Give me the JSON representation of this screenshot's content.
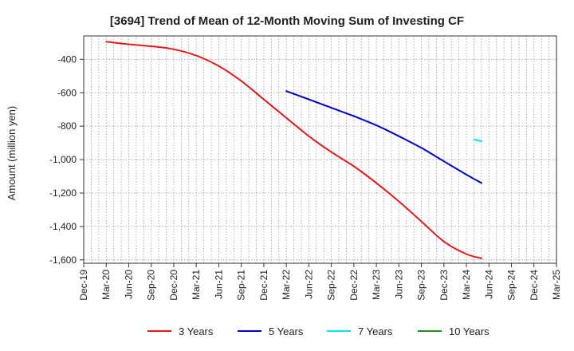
{
  "chart_data": {
    "type": "line",
    "title": "[3694]  Trend of Mean of 12-Month Moving Sum of Investing CF",
    "xlabel": "",
    "ylabel": "Amount (million yen)",
    "ylim": [
      -1620,
      -260
    ],
    "yticks": [
      -400,
      -600,
      -800,
      -1000,
      -1200,
      -1400,
      -1600
    ],
    "ytick_labels": [
      "-400",
      "-600",
      "-800",
      "-1,000",
      "-1,200",
      "-1,400",
      "-1,600"
    ],
    "x_categories": [
      "Dec-19",
      "Mar-20",
      "Jun-20",
      "Sep-20",
      "Dec-20",
      "Mar-21",
      "Jun-21",
      "Sep-21",
      "Dec-21",
      "Mar-22",
      "Jun-22",
      "Sep-22",
      "Dec-22",
      "Mar-23",
      "Jun-23",
      "Sep-23",
      "Dec-23",
      "Mar-24",
      "Jun-24",
      "Sep-24",
      "Dec-24",
      "Mar-25"
    ],
    "grid": true,
    "series": [
      {
        "name": "3 Years",
        "color": "#e31a1c",
        "points": [
          [
            3,
            -295
          ],
          [
            6,
            -310
          ],
          [
            9,
            -322
          ],
          [
            12,
            -340
          ],
          [
            15,
            -378
          ],
          [
            18,
            -440
          ],
          [
            21,
            -530
          ],
          [
            24,
            -640
          ],
          [
            27,
            -750
          ],
          [
            30,
            -860
          ],
          [
            33,
            -955
          ],
          [
            36,
            -1040
          ],
          [
            39,
            -1140
          ],
          [
            42,
            -1250
          ],
          [
            45,
            -1370
          ],
          [
            48,
            -1490
          ],
          [
            51,
            -1565
          ],
          [
            53,
            -1590
          ]
        ]
      },
      {
        "name": "5 Years",
        "color": "#0000cc",
        "points": [
          [
            27,
            -590
          ],
          [
            30,
            -640
          ],
          [
            33,
            -690
          ],
          [
            36,
            -740
          ],
          [
            39,
            -795
          ],
          [
            42,
            -860
          ],
          [
            45,
            -930
          ],
          [
            48,
            -1010
          ],
          [
            51,
            -1090
          ],
          [
            53,
            -1140
          ]
        ]
      },
      {
        "name": "7 Years",
        "color": "#00e5ee",
        "points": [
          [
            52,
            -880
          ],
          [
            53,
            -890
          ]
        ]
      },
      {
        "name": "10 Years",
        "color": "#228b22",
        "points": []
      }
    ],
    "legend_position": "bottom"
  }
}
